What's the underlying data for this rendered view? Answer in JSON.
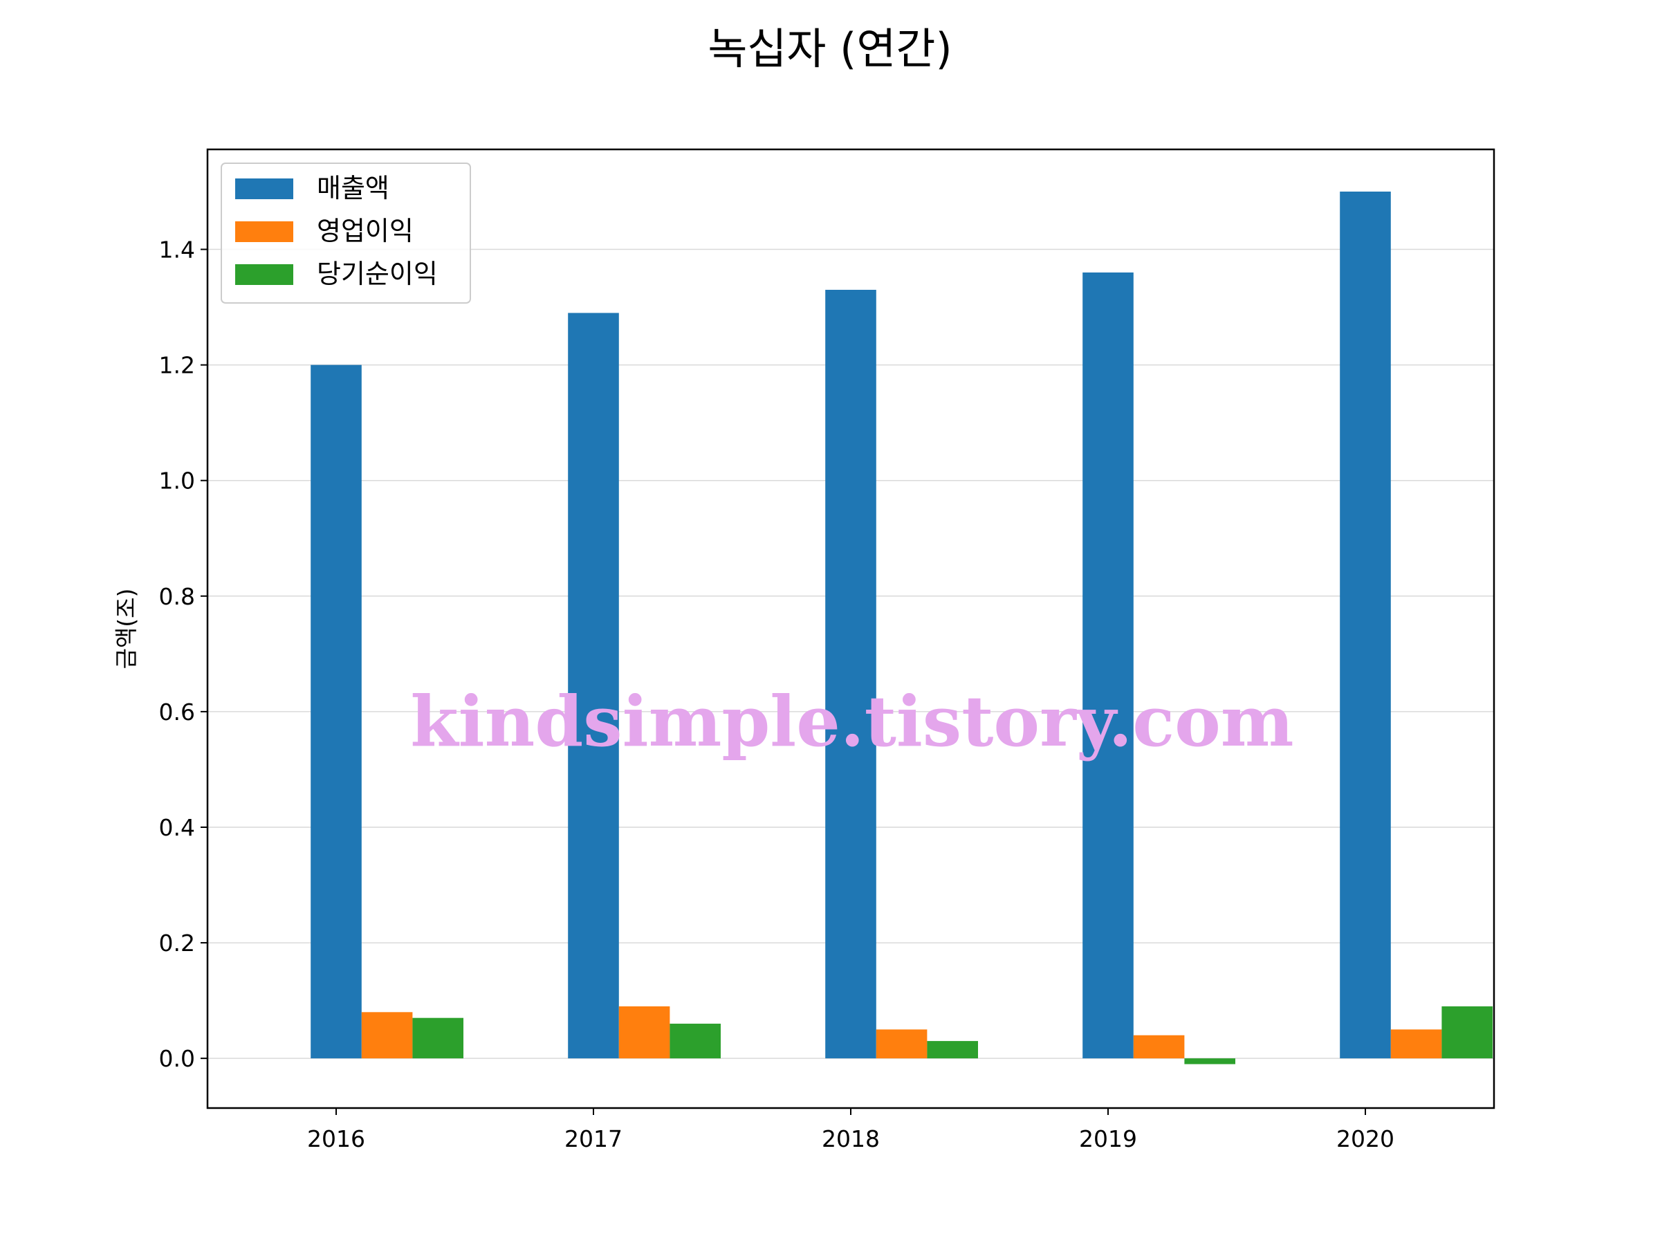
{
  "chart_data": {
    "type": "bar",
    "title": "녹십자 (연간)",
    "xlabel": "",
    "ylabel": "금액(조)",
    "categories": [
      "2016",
      "2017",
      "2018",
      "2019",
      "2020"
    ],
    "series": [
      {
        "name": "매출액",
        "color": "#1f77b4",
        "values": [
          1.2,
          1.29,
          1.33,
          1.36,
          1.5
        ]
      },
      {
        "name": "영업이익",
        "color": "#ff7f0e",
        "values": [
          0.08,
          0.09,
          0.05,
          0.04,
          0.05
        ]
      },
      {
        "name": "당기순이익",
        "color": "#2ca02c",
        "values": [
          0.07,
          0.06,
          0.03,
          -0.01,
          0.09
        ]
      }
    ],
    "ylim": [
      -0.086,
      1.573
    ],
    "yticks": [
      0.0,
      0.2,
      0.4,
      0.6,
      0.8,
      1.0,
      1.2,
      1.4
    ],
    "ytick_labels": [
      "0.0",
      "0.2",
      "0.4",
      "0.6",
      "0.8",
      "1.0",
      "1.2",
      "1.4"
    ],
    "grid": "horizontal",
    "legend_position": "top-left"
  },
  "watermark": "kindsimple.tistory.com"
}
